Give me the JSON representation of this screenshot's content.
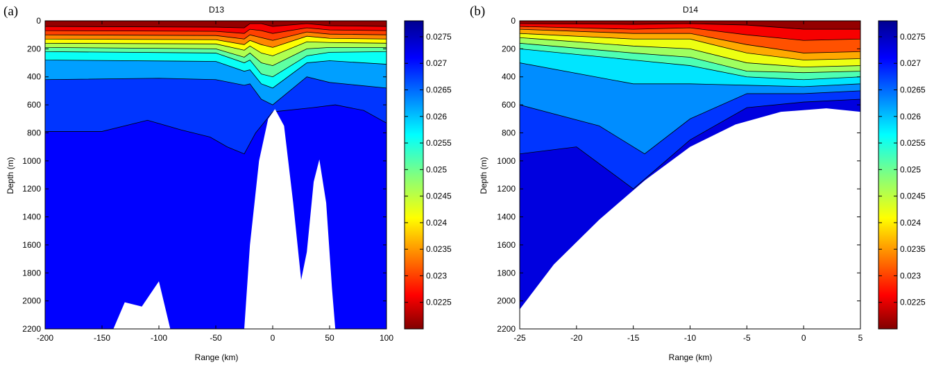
{
  "chart_data": [
    {
      "type": "heatmap",
      "panel_label": "(a)",
      "title": "D13",
      "xlabel": "Range (km)",
      "ylabel": "Depth (m)",
      "xlim": [
        -200,
        100
      ],
      "ylim": [
        0,
        2200
      ],
      "y_reversed": true,
      "xticks": [
        -200,
        -150,
        -100,
        -50,
        0,
        50,
        100
      ],
      "yticks": [
        0,
        200,
        400,
        600,
        800,
        1000,
        1200,
        1400,
        1600,
        1800,
        2000,
        2200
      ],
      "colorbar": {
        "range": [
          0.022,
          0.0278
        ],
        "ticks": [
          "0.0275",
          "0.027",
          "0.0265",
          "0.026",
          "0.0255",
          "0.025",
          "0.0245",
          "0.024",
          "0.0235",
          "0.023",
          "0.0225"
        ],
        "colormap": "jet-reversed"
      },
      "bathymetry": [
        [
          -200,
          2200
        ],
        [
          -140,
          2200
        ],
        [
          -130,
          2010
        ],
        [
          -115,
          2040
        ],
        [
          -100,
          1860
        ],
        [
          -90,
          2200
        ],
        [
          -25,
          2200
        ],
        [
          -20,
          1600
        ],
        [
          -12,
          1000
        ],
        [
          -4,
          700
        ],
        [
          2,
          630
        ],
        [
          10,
          750
        ],
        [
          18,
          1300
        ],
        [
          25,
          1850
        ],
        [
          30,
          1650
        ],
        [
          36,
          1150
        ],
        [
          41,
          990
        ],
        [
          47,
          1300
        ],
        [
          52,
          1900
        ],
        [
          55,
          2200
        ],
        [
          100,
          2200
        ]
      ],
      "layers": [
        {
          "value": 0.0221,
          "bottom_depth": [
            [
              -200,
              40
            ],
            [
              -50,
              45
            ],
            [
              -25,
              50
            ],
            [
              -20,
              20
            ],
            [
              -10,
              20
            ],
            [
              0,
              40
            ],
            [
              30,
              20
            ],
            [
              50,
              35
            ],
            [
              100,
              40
            ]
          ]
        },
        {
          "value": 0.0226,
          "bottom_depth": [
            [
              -200,
              70
            ],
            [
              -50,
              75
            ],
            [
              -25,
              90
            ],
            [
              -20,
              60
            ],
            [
              -10,
              70
            ],
            [
              0,
              90
            ],
            [
              30,
              50
            ],
            [
              50,
              65
            ],
            [
              100,
              70
            ]
          ]
        },
        {
          "value": 0.023,
          "bottom_depth": [
            [
              -200,
              100
            ],
            [
              -50,
              105
            ],
            [
              -25,
              130
            ],
            [
              -20,
              100
            ],
            [
              -10,
              120
            ],
            [
              0,
              140
            ],
            [
              30,
              80
            ],
            [
              50,
              95
            ],
            [
              100,
              100
            ]
          ]
        },
        {
          "value": 0.0234,
          "bottom_depth": [
            [
              -200,
              130
            ],
            [
              -50,
              135
            ],
            [
              -25,
              170
            ],
            [
              -20,
              140
            ],
            [
              -10,
              170
            ],
            [
              0,
              190
            ],
            [
              30,
              110
            ],
            [
              50,
              125
            ],
            [
              100,
              130
            ]
          ]
        },
        {
          "value": 0.0241,
          "bottom_depth": [
            [
              -200,
              160
            ],
            [
              -50,
              165
            ],
            [
              -25,
              210
            ],
            [
              -20,
              180
            ],
            [
              -10,
              230
            ],
            [
              0,
              250
            ],
            [
              30,
              150
            ],
            [
              50,
              155
            ],
            [
              100,
              160
            ]
          ]
        },
        {
          "value": 0.0246,
          "bottom_depth": [
            [
              -200,
              190
            ],
            [
              -50,
              200
            ],
            [
              -25,
              260
            ],
            [
              -20,
              230
            ],
            [
              -10,
              300
            ],
            [
              0,
              320
            ],
            [
              30,
              200
            ],
            [
              50,
              190
            ],
            [
              100,
              190
            ]
          ]
        },
        {
          "value": 0.0251,
          "bottom_depth": [
            [
              -200,
              220
            ],
            [
              -50,
              230
            ],
            [
              -25,
              300
            ],
            [
              -20,
              280
            ],
            [
              -10,
              380
            ],
            [
              0,
              400
            ],
            [
              30,
              250
            ],
            [
              50,
              225
            ],
            [
              100,
              220
            ]
          ]
        },
        {
          "value": 0.0256,
          "bottom_depth": [
            [
              -200,
              280
            ],
            [
              -50,
              290
            ],
            [
              -25,
              360
            ],
            [
              -20,
              350
            ],
            [
              -10,
              450
            ],
            [
              0,
              480
            ],
            [
              30,
              300
            ],
            [
              50,
              285
            ],
            [
              100,
              310
            ]
          ]
        },
        {
          "value": 0.0262,
          "bottom_depth": [
            [
              -200,
              420
            ],
            [
              -100,
              410
            ],
            [
              -50,
              420
            ],
            [
              -25,
              460
            ],
            [
              -20,
              450
            ],
            [
              -10,
              560
            ],
            [
              0,
              600
            ],
            [
              30,
              400
            ],
            [
              50,
              440
            ],
            [
              100,
              480
            ]
          ]
        },
        {
          "value": 0.0268,
          "bottom_depth": [
            [
              -200,
              790
            ],
            [
              -150,
              790
            ],
            [
              -110,
              710
            ],
            [
              -80,
              780
            ],
            [
              -55,
              830
            ],
            [
              -40,
              900
            ],
            [
              -25,
              950
            ],
            [
              -15,
              800
            ],
            [
              0,
              650
            ],
            [
              35,
              620
            ],
            [
              55,
              600
            ],
            [
              80,
              640
            ],
            [
              100,
              730
            ]
          ]
        },
        {
          "value": 0.0271,
          "bottom_depth": [
            [
              -200,
              2200
            ],
            [
              100,
              2200
            ]
          ]
        }
      ]
    },
    {
      "type": "heatmap",
      "panel_label": "(b)",
      "title": "D14",
      "xlabel": "Range (km)",
      "ylabel": "Depth (m)",
      "xlim": [
        -25,
        5
      ],
      "ylim": [
        0,
        2200
      ],
      "y_reversed": true,
      "xticks": [
        -25,
        -20,
        -15,
        -10,
        -5,
        0,
        5
      ],
      "yticks": [
        0,
        200,
        400,
        600,
        800,
        1000,
        1200,
        1400,
        1600,
        1800,
        2000,
        2200
      ],
      "colorbar": {
        "range": [
          0.022,
          0.0278
        ],
        "ticks": [
          "0.0275",
          "0.027",
          "0.0265",
          "0.026",
          "0.0255",
          "0.025",
          "0.0245",
          "0.024",
          "0.0235",
          "0.023",
          "0.0225"
        ],
        "colormap": "jet-reversed"
      },
      "bathymetry": [
        [
          -25,
          2060
        ],
        [
          -22,
          1740
        ],
        [
          -18,
          1420
        ],
        [
          -14,
          1140
        ],
        [
          -10,
          900
        ],
        [
          -6,
          740
        ],
        [
          -2,
          650
        ],
        [
          2,
          625
        ],
        [
          5,
          650
        ]
      ],
      "layers": [
        {
          "value": 0.0221,
          "bottom_depth": [
            [
              -25,
              20
            ],
            [
              -15,
              25
            ],
            [
              -10,
              20
            ],
            [
              -5,
              30
            ],
            [
              0,
              60
            ],
            [
              5,
              60
            ]
          ]
        },
        {
          "value": 0.0226,
          "bottom_depth": [
            [
              -25,
              40
            ],
            [
              -15,
              60
            ],
            [
              -10,
              50
            ],
            [
              -5,
              100
            ],
            [
              0,
              140
            ],
            [
              5,
              130
            ]
          ]
        },
        {
          "value": 0.0231,
          "bottom_depth": [
            [
              -25,
              60
            ],
            [
              -15,
              90
            ],
            [
              -10,
              90
            ],
            [
              -5,
              170
            ],
            [
              0,
              230
            ],
            [
              5,
              220
            ]
          ]
        },
        {
          "value": 0.0236,
          "bottom_depth": [
            [
              -25,
              90
            ],
            [
              -15,
              130
            ],
            [
              -10,
              130
            ],
            [
              -5,
              230
            ],
            [
              0,
              280
            ],
            [
              5,
              270
            ]
          ]
        },
        {
          "value": 0.0242,
          "bottom_depth": [
            [
              -25,
              120
            ],
            [
              -15,
              180
            ],
            [
              -10,
              200
            ],
            [
              -5,
              300
            ],
            [
              0,
              330
            ],
            [
              5,
              320
            ]
          ]
        },
        {
          "value": 0.0247,
          "bottom_depth": [
            [
              -25,
              160
            ],
            [
              -15,
              230
            ],
            [
              -10,
              260
            ],
            [
              -5,
              360
            ],
            [
              0,
              370
            ],
            [
              5,
              360
            ]
          ]
        },
        {
          "value": 0.0252,
          "bottom_depth": [
            [
              -25,
              200
            ],
            [
              -15,
              280
            ],
            [
              -10,
              320
            ],
            [
              -5,
              400
            ],
            [
              0,
              420
            ],
            [
              5,
              400
            ]
          ]
        },
        {
          "value": 0.0258,
          "bottom_depth": [
            [
              -25,
              300
            ],
            [
              -15,
              450
            ],
            [
              -10,
              450
            ],
            [
              -5,
              460
            ],
            [
              0,
              470
            ],
            [
              5,
              450
            ]
          ]
        },
        {
          "value": 0.0263,
          "bottom_depth": [
            [
              -25,
              600
            ],
            [
              -18,
              750
            ],
            [
              -14,
              950
            ],
            [
              -10,
              700
            ],
            [
              -5,
              520
            ],
            [
              0,
              520
            ],
            [
              5,
              500
            ]
          ]
        },
        {
          "value": 0.0268,
          "bottom_depth": [
            [
              -25,
              950
            ],
            [
              -20,
              900
            ],
            [
              -15,
              1200
            ],
            [
              -10,
              850
            ],
            [
              -5,
              620
            ],
            [
              0,
              580
            ],
            [
              5,
              560
            ]
          ]
        },
        {
          "value": 0.0273,
          "bottom_depth": [
            [
              -25,
              2200
            ],
            [
              5,
              2200
            ]
          ]
        }
      ]
    }
  ]
}
